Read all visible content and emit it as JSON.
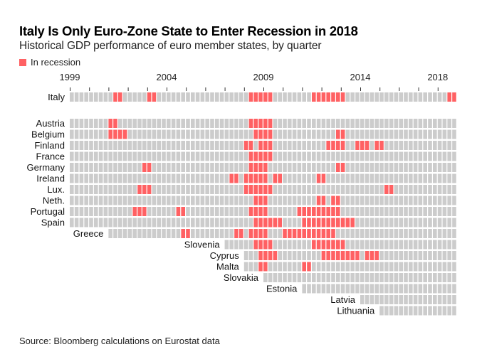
{
  "title": "Italy Is Only Euro-Zone State to Enter Recession in 2018",
  "subtitle": "Historical GDP performance of euro member states, by quarter",
  "legend": {
    "label": "In recession",
    "color": "#ff6163"
  },
  "source": "Source: Bloomberg calculations on Eurostat data",
  "colors": {
    "recession": "#ff6163",
    "normal": "#cccccc"
  },
  "chart_data": {
    "type": "heatmap",
    "title": "Italy Is Only Euro-Zone State to Enter Recession in 2018",
    "subtitle": "Historical GDP performance of euro member states, by quarter",
    "x_range": [
      "1999Q1",
      "2018Q4"
    ],
    "x_tick_labels": [
      {
        "label": "1999",
        "quarter": "1999Q1"
      },
      {
        "label": "2004",
        "quarter": "2004Q1"
      },
      {
        "label": "2009",
        "quarter": "2009Q1"
      },
      {
        "label": "2014",
        "quarter": "2014Q1"
      },
      {
        "label": "2018",
        "quarter": "2018Q1"
      }
    ],
    "x_ticks": "every year (Q1)",
    "legend": [
      "In recession"
    ],
    "legend_position": "top-left",
    "series": [
      {
        "name": "Italy",
        "group": "highlight",
        "start": "1999Q1",
        "recession": [
          "2001Q2",
          "2001Q3",
          "2003Q1",
          "2003Q2",
          "2008Q2",
          "2008Q3",
          "2008Q4",
          "2009Q1",
          "2009Q2",
          "2011Q3",
          "2011Q4",
          "2012Q1",
          "2012Q2",
          "2012Q3",
          "2012Q4",
          "2013Q1",
          "2018Q3",
          "2018Q4"
        ]
      },
      {
        "name": "Austria",
        "start": "1999Q1",
        "recession": [
          "2001Q1",
          "2001Q2",
          "2008Q2",
          "2008Q3",
          "2008Q4",
          "2009Q1",
          "2009Q2"
        ]
      },
      {
        "name": "Belgium",
        "start": "1999Q1",
        "recession": [
          "2001Q1",
          "2001Q2",
          "2001Q3",
          "2001Q4",
          "2008Q3",
          "2008Q4",
          "2009Q1",
          "2009Q2",
          "2012Q4",
          "2013Q1"
        ]
      },
      {
        "name": "Finland",
        "start": "1999Q1",
        "recession": [
          "2008Q1",
          "2008Q2",
          "2008Q4",
          "2009Q1",
          "2009Q2",
          "2012Q2",
          "2012Q3",
          "2012Q4",
          "2013Q1",
          "2013Q4",
          "2014Q1",
          "2014Q2",
          "2014Q4",
          "2015Q1"
        ]
      },
      {
        "name": "France",
        "start": "1999Q1",
        "recession": [
          "2008Q2",
          "2008Q3",
          "2008Q4",
          "2009Q1",
          "2009Q2"
        ]
      },
      {
        "name": "Germany",
        "start": "1999Q1",
        "recession": [
          "2002Q4",
          "2003Q1",
          "2008Q2",
          "2008Q3",
          "2008Q4",
          "2009Q1",
          "2012Q4",
          "2013Q1"
        ]
      },
      {
        "name": "Ireland",
        "start": "1999Q1",
        "recession": [
          "2007Q2",
          "2007Q3",
          "2008Q1",
          "2008Q2",
          "2008Q3",
          "2008Q4",
          "2009Q1",
          "2009Q3",
          "2009Q4",
          "2011Q4",
          "2012Q1"
        ]
      },
      {
        "name": "Lux.",
        "start": "1999Q1",
        "recession": [
          "2002Q3",
          "2002Q4",
          "2003Q1",
          "2008Q1",
          "2008Q2",
          "2008Q3",
          "2008Q4",
          "2009Q1",
          "2009Q2",
          "2015Q2",
          "2015Q3"
        ]
      },
      {
        "name": "Neth.",
        "start": "1999Q1",
        "recession": [
          "2008Q3",
          "2008Q4",
          "2009Q1",
          "2011Q4",
          "2012Q1",
          "2012Q3",
          "2012Q4"
        ]
      },
      {
        "name": "Portugal",
        "start": "1999Q1",
        "recession": [
          "2002Q2",
          "2002Q3",
          "2002Q4",
          "2004Q3",
          "2004Q4",
          "2008Q2",
          "2008Q3",
          "2008Q4",
          "2009Q1",
          "2010Q4",
          "2011Q1",
          "2011Q2",
          "2011Q3",
          "2011Q4",
          "2012Q1",
          "2012Q2",
          "2012Q3",
          "2012Q4"
        ]
      },
      {
        "name": "Spain",
        "start": "1999Q1",
        "recession": [
          "2008Q3",
          "2008Q4",
          "2009Q1",
          "2009Q2",
          "2009Q3",
          "2009Q4",
          "2011Q1",
          "2011Q2",
          "2011Q3",
          "2011Q4",
          "2012Q1",
          "2012Q2",
          "2012Q3",
          "2012Q4",
          "2013Q1",
          "2013Q2",
          "2013Q3"
        ]
      },
      {
        "name": "Greece",
        "start": "2001Q1",
        "recession": [
          "2004Q4",
          "2005Q1",
          "2007Q3",
          "2007Q4",
          "2008Q2",
          "2008Q3",
          "2008Q4",
          "2009Q1",
          "2010Q1",
          "2010Q2",
          "2010Q3",
          "2010Q4",
          "2011Q1",
          "2011Q2",
          "2011Q3",
          "2011Q4",
          "2012Q1",
          "2012Q2",
          "2012Q3"
        ]
      },
      {
        "name": "Slovenia",
        "start": "2007Q1",
        "recession": [
          "2008Q3",
          "2008Q4",
          "2009Q1",
          "2009Q2",
          "2011Q3",
          "2011Q4",
          "2012Q1",
          "2012Q2",
          "2012Q3",
          "2012Q4",
          "2013Q1"
        ]
      },
      {
        "name": "Cyprus",
        "start": "2008Q1",
        "recession": [
          "2008Q4",
          "2009Q1",
          "2009Q2",
          "2009Q3",
          "2012Q1",
          "2012Q2",
          "2012Q3",
          "2012Q4",
          "2013Q1",
          "2013Q2",
          "2013Q3",
          "2013Q4",
          "2014Q2",
          "2014Q3",
          "2014Q4"
        ]
      },
      {
        "name": "Malta",
        "start": "2008Q1",
        "recession": [
          "2008Q4",
          "2009Q1",
          "2011Q1",
          "2011Q2"
        ]
      },
      {
        "name": "Slovakia",
        "start": "2009Q1",
        "recession": []
      },
      {
        "name": "Estonia",
        "start": "2011Q1",
        "recession": []
      },
      {
        "name": "Latvia",
        "start": "2014Q1",
        "recession": []
      },
      {
        "name": "Lithuania",
        "start": "2015Q1",
        "recession": []
      }
    ]
  }
}
